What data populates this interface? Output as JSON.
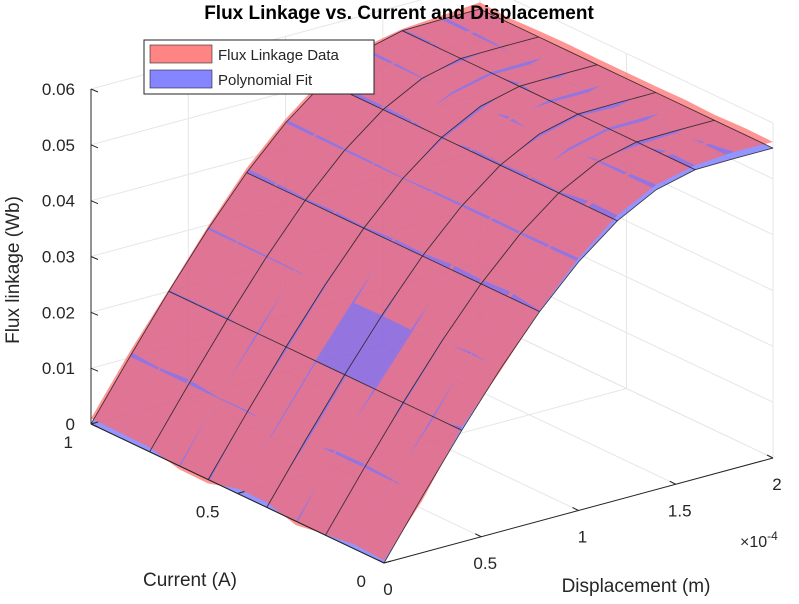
{
  "chart_data": {
    "type": "surface3d",
    "title": "Flux Linkage vs. Current and Displacement",
    "xlabel": "Displacement (m)",
    "ylabel": "Current (A)",
    "zlabel": "Flux linkage (Wb)",
    "x_exponent_label": "×10",
    "x_exponent_power": "-4",
    "xlim": [
      0,
      0.0002
    ],
    "ylim": [
      0,
      1
    ],
    "zlim": [
      0,
      0.06
    ],
    "x_ticks": [
      {
        "value": 0,
        "label": "0"
      },
      {
        "value": 5e-05,
        "label": "0.5"
      },
      {
        "value": 0.0001,
        "label": "1"
      },
      {
        "value": 0.00015,
        "label": "1.5"
      },
      {
        "value": 0.0002,
        "label": "2"
      }
    ],
    "y_ticks": [
      {
        "value": 0,
        "label": "0"
      },
      {
        "value": 0.5,
        "label": "0.5"
      },
      {
        "value": 1,
        "label": "1"
      }
    ],
    "z_ticks": [
      {
        "value": 0,
        "label": "0"
      },
      {
        "value": 0.01,
        "label": "0.01"
      },
      {
        "value": 0.02,
        "label": "0.02"
      },
      {
        "value": 0.03,
        "label": "0.03"
      },
      {
        "value": 0.04,
        "label": "0.04"
      },
      {
        "value": 0.05,
        "label": "0.05"
      },
      {
        "value": 0.06,
        "label": "0.06"
      }
    ],
    "grid": true,
    "legend_location": "top-left",
    "series": [
      {
        "name": "Flux Linkage Data",
        "color": "#ff6666",
        "facealpha": 0.7
      },
      {
        "name": "Polynomial Fit",
        "color": "#6666ff",
        "facealpha": 0.7
      }
    ],
    "surface": {
      "displacement": [
        0,
        2e-05,
        4e-05,
        6e-05,
        8e-05,
        0.0001,
        0.00012,
        0.00014,
        0.00016,
        0.00018,
        0.0002
      ],
      "current": [
        0,
        0.1,
        0.2,
        0.3,
        0.4,
        0.5,
        0.6,
        0.7,
        0.8,
        0.9,
        1.0
      ],
      "flux_linkage_fit": [
        [
          0,
          0.0102,
          0.02,
          0.0292,
          0.0375,
          0.0445,
          0.05,
          0.0537,
          0.0554,
          0.0555,
          0.0555
        ],
        [
          0,
          0.0102,
          0.02,
          0.0292,
          0.0375,
          0.0445,
          0.05,
          0.0537,
          0.0554,
          0.0555,
          0.0555
        ],
        [
          0,
          0.0102,
          0.02,
          0.0292,
          0.0375,
          0.0445,
          0.05,
          0.0537,
          0.0554,
          0.0555,
          0.0555
        ],
        [
          0,
          0.0102,
          0.02,
          0.0292,
          0.0375,
          0.0445,
          0.05,
          0.0537,
          0.0554,
          0.0555,
          0.0555
        ],
        [
          0,
          0.0102,
          0.02,
          0.0292,
          0.0375,
          0.0445,
          0.05,
          0.0537,
          0.0554,
          0.0555,
          0.0555
        ],
        [
          0,
          0.0102,
          0.02,
          0.0292,
          0.0375,
          0.0445,
          0.05,
          0.0537,
          0.0554,
          0.0555,
          0.0555
        ],
        [
          0,
          0.0102,
          0.02,
          0.0292,
          0.0375,
          0.0445,
          0.05,
          0.0537,
          0.0554,
          0.0555,
          0.0555
        ],
        [
          0,
          0.0102,
          0.02,
          0.0292,
          0.0375,
          0.0445,
          0.05,
          0.0537,
          0.0554,
          0.0555,
          0.0555
        ],
        [
          0,
          0.0102,
          0.02,
          0.0292,
          0.0375,
          0.0445,
          0.05,
          0.0537,
          0.0554,
          0.0555,
          0.0555
        ],
        [
          0,
          0.0102,
          0.02,
          0.0292,
          0.0375,
          0.0445,
          0.05,
          0.0537,
          0.0554,
          0.0555,
          0.0555
        ],
        [
          0,
          0.0102,
          0.02,
          0.0292,
          0.0375,
          0.0445,
          0.05,
          0.0537,
          0.0554,
          0.0555,
          0.0555
        ]
      ],
      "data_minus_fit": [
        [
          0.0005,
          -0.0007,
          0.0006,
          -0.0004,
          0.0002,
          0.0007,
          0.001,
          0.0009,
          0.0008,
          0.0012,
          0.0011
        ],
        [
          0.0008,
          0.0003,
          -0.0006,
          0.0004,
          0.0011,
          0.0006,
          0.0011,
          0.0006,
          0.0009,
          0.0004,
          0.0012
        ],
        [
          0.0002,
          0.0007,
          -0.0005,
          -0.0002,
          0.0008,
          0.0005,
          0.0003,
          0.0004,
          -0.0007,
          -0.0004,
          0.001
        ],
        [
          -0.0007,
          0.0006,
          -0.0006,
          -0.0007,
          0.001,
          0.0006,
          0.0006,
          -0.0005,
          -0.0005,
          -0.0006,
          0.0012
        ],
        [
          0.0009,
          -0.0007,
          -0.0007,
          -0.0006,
          0.0006,
          0.0005,
          0.0004,
          -0.0005,
          -0.0004,
          -0.0007,
          0.0011
        ],
        [
          0.0009,
          -0.0004,
          -0.0005,
          -0.0007,
          0.0007,
          0.0004,
          0.0006,
          0.0006,
          -0.0005,
          -0.0006,
          0.0011
        ],
        [
          -0.0007,
          0.0003,
          -0.0007,
          -0.0004,
          0.0003,
          0.0002,
          -0.0004,
          -0.0006,
          0.0006,
          -0.0005,
          0.0011
        ],
        [
          -0.0006,
          0.0002,
          -0.0006,
          0.0002,
          0.0006,
          0.0004,
          0.0005,
          -0.0004,
          -0.0005,
          -0.0006,
          0.0012
        ],
        [
          0.0008,
          0.0009,
          0.0004,
          0.0003,
          0.0004,
          0.0005,
          0.0007,
          0.0002,
          -0.0005,
          0.0003,
          0.0011
        ],
        [
          0.0009,
          0.0005,
          0.0003,
          0.0004,
          0.0007,
          0.0006,
          0.0007,
          0.0005,
          0.0004,
          0.0006,
          0.0009
        ],
        [
          0.001,
          0.0009,
          0.0003,
          0.0005,
          0.0008,
          0.0007,
          0.0008,
          0.0006,
          0.0003,
          0.0007,
          0.0012
        ]
      ]
    }
  }
}
